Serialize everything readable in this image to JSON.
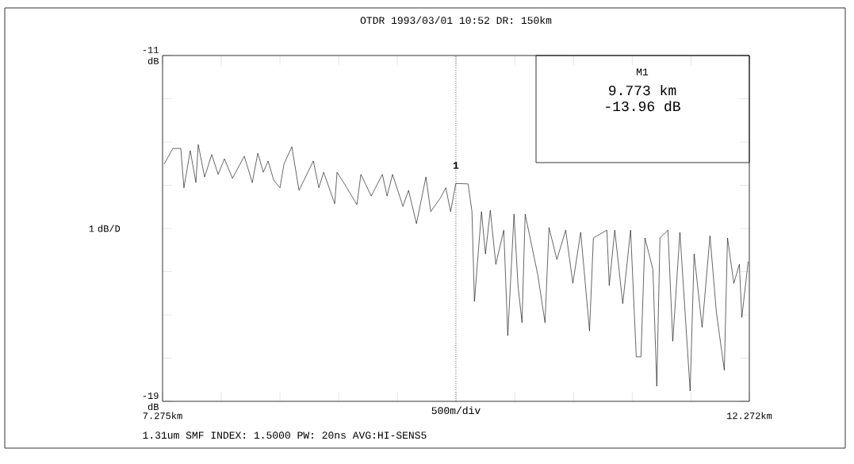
{
  "chart_data": {
    "type": "line",
    "title": "OTDR   1993/03/01 10:52   DR:  150km",
    "xlabel": "500m/div",
    "ylabel": "1 dB/D",
    "annotations": [
      "M1",
      "9.773 km",
      "-13.96 dB",
      "1.31um SMF  INDEX: 1.5000  PW: 20ns  AVG:HI-SENS5",
      {
        "text": "1",
        "x": 9.773,
        "y": -13.96
      }
    ],
    "x": [
      7.289,
      7.363,
      7.43,
      7.457,
      7.511,
      7.559,
      7.579,
      7.633,
      7.694,
      7.748,
      7.802,
      7.87,
      7.971,
      8.039,
      8.086,
      8.133,
      8.174,
      8.221,
      8.275,
      8.309,
      8.376,
      8.437,
      8.559,
      8.606,
      8.647,
      8.741,
      8.761,
      8.829,
      8.93,
      8.964,
      9.052,
      9.147,
      9.187,
      9.234,
      9.322,
      9.37,
      9.437,
      9.518,
      9.559,
      9.64,
      9.687,
      9.728,
      9.773,
      9.877,
      9.91,
      9.931,
      9.991,
      10.025,
      10.066,
      10.113,
      10.181,
      10.215,
      10.268,
      10.302,
      10.336,
      10.363,
      10.471,
      10.532,
      10.566,
      10.633,
      10.708,
      10.769,
      10.836,
      10.911,
      10.944,
      11.059,
      11.079,
      11.126,
      11.194,
      11.261,
      11.309,
      11.349,
      11.383,
      11.451,
      11.484,
      11.511,
      11.579,
      11.62,
      11.681,
      11.768,
      11.802,
      11.87,
      11.937,
      11.991,
      12.059,
      12.086,
      12.14,
      12.187,
      12.208,
      12.262
    ],
    "values": [
      -13.51,
      -13.15,
      -13.15,
      -14.06,
      -13.2,
      -13.94,
      -13.06,
      -13.81,
      -13.29,
      -13.75,
      -13.39,
      -13.84,
      -13.33,
      -13.94,
      -13.26,
      -13.7,
      -13.44,
      -13.88,
      -14.06,
      -13.51,
      -13.11,
      -14.12,
      -13.44,
      -14.06,
      -13.7,
      -14.43,
      -13.7,
      -13.99,
      -14.45,
      -13.75,
      -14.25,
      -13.75,
      -14.25,
      -13.75,
      -14.49,
      -14.12,
      -14.89,
      -13.81,
      -14.61,
      -14.3,
      -14.06,
      -14.61,
      -13.96,
      -13.97,
      -14.61,
      -16.69,
      -14.61,
      -15.59,
      -14.58,
      -15.83,
      -15.04,
      -17.48,
      -14.67,
      -16.32,
      -17.18,
      -14.67,
      -16.08,
      -17.18,
      -14.98,
      -15.72,
      -15.04,
      -16.27,
      -15.09,
      -17.37,
      -15.22,
      -15.04,
      -16.32,
      -15.04,
      -16.74,
      -15.04,
      -17.97,
      -17.97,
      -15.22,
      -15.95,
      -18.65,
      -15.22,
      -15.04,
      -17.61,
      -15.09,
      -18.76,
      -15.59,
      -17.29,
      -15.17,
      -16.93,
      -18.28,
      -15.22,
      -16.27,
      -15.83,
      -17.06,
      -15.77
    ],
    "color": "#000000",
    "marker": "none",
    "line_style": "solid",
    "xlim": [
      7.275,
      12.272
    ],
    "ylim": [
      -19,
      -11
    ],
    "xticks": [
      {
        "value": 7.275,
        "label": "7.275km"
      },
      {
        "value": 7.775,
        "label": null
      },
      {
        "value": 8.275,
        "label": null
      },
      {
        "value": 8.775,
        "label": null
      },
      {
        "value": 9.275,
        "label": null
      },
      {
        "value": 9.775,
        "label": null
      },
      {
        "value": 10.275,
        "label": null
      },
      {
        "value": 10.775,
        "label": null
      },
      {
        "value": 11.275,
        "label": null
      },
      {
        "value": 11.775,
        "label": null
      },
      {
        "value": 12.272,
        "label": "12.272km"
      }
    ],
    "yticks": [
      {
        "value": -11,
        "label": "-11 dB"
      },
      {
        "value": -12,
        "label": null
      },
      {
        "value": -13,
        "label": null
      },
      {
        "value": -14,
        "label": null
      },
      {
        "value": -15,
        "label": null
      },
      {
        "value": -16,
        "label": null
      },
      {
        "value": -17,
        "label": null
      },
      {
        "value": -18,
        "label": null
      },
      {
        "value": -19,
        "label": "-19 dB"
      }
    ],
    "ref_lines": [
      {
        "axis": "x",
        "value": 9.773,
        "line_style": "dotted"
      }
    ]
  }
}
